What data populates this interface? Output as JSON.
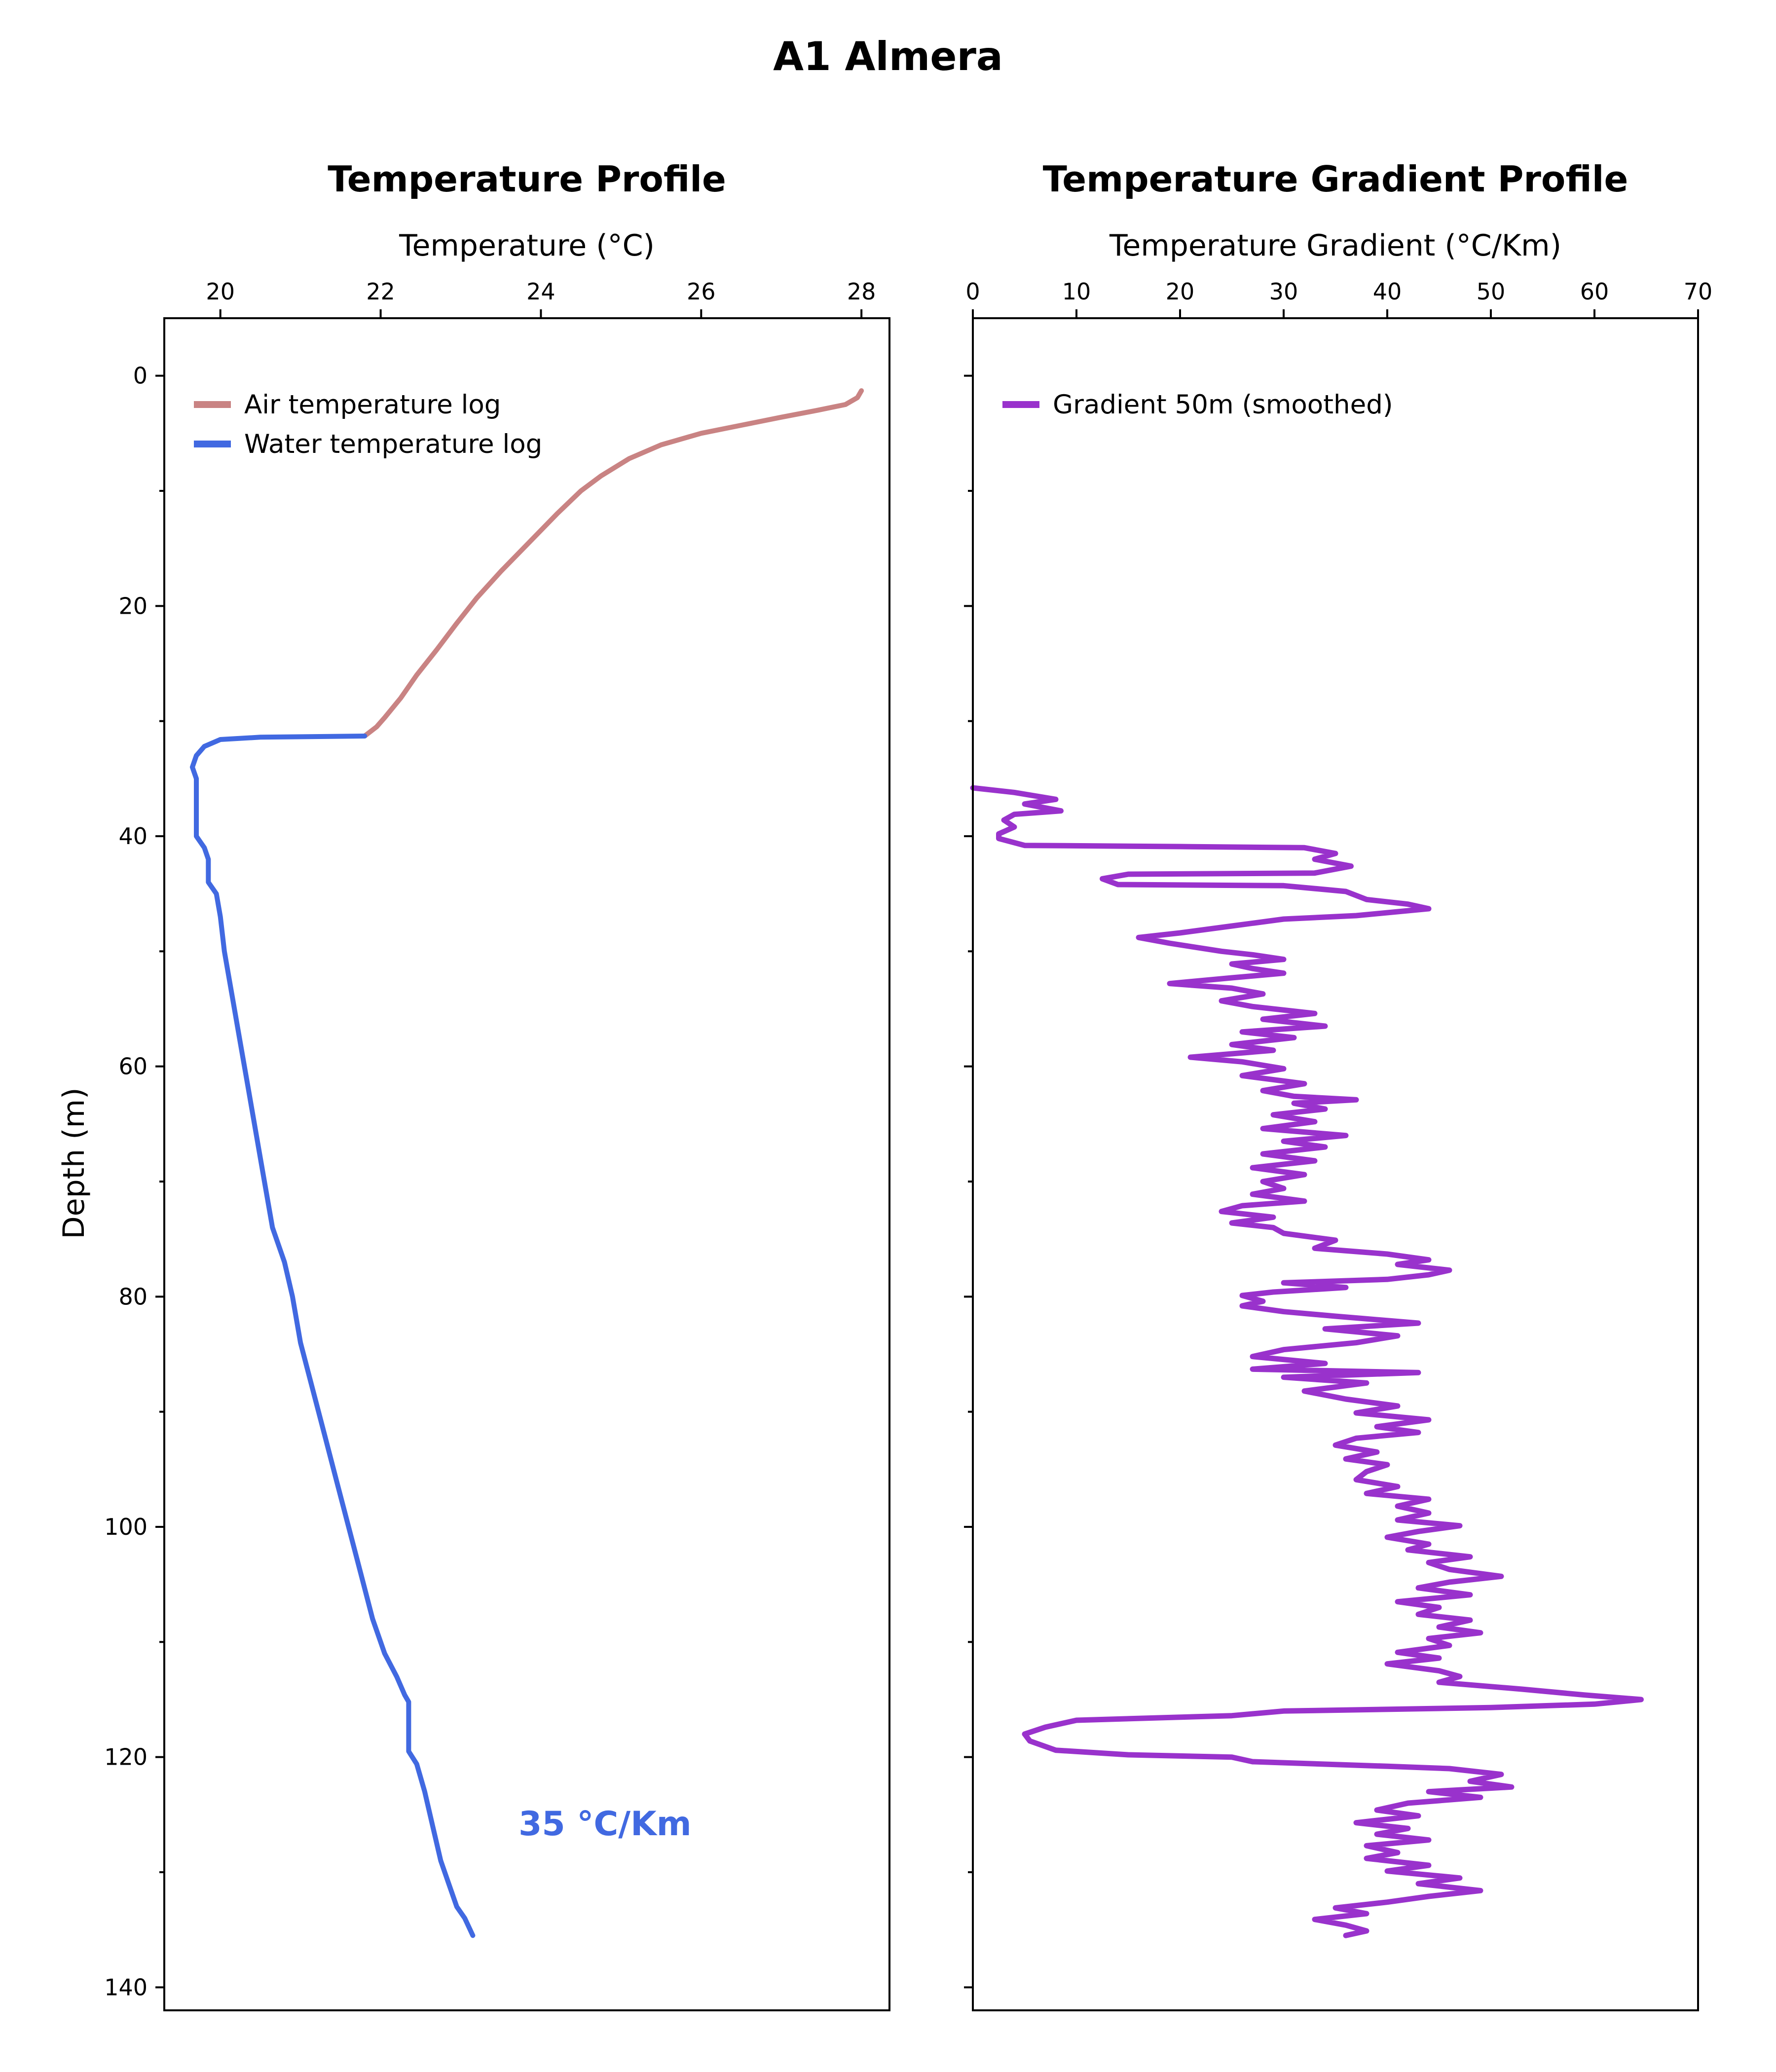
{
  "figure": {
    "suptitle": "A1 Almera"
  },
  "chart_data": [
    {
      "type": "line",
      "title": "Temperature Profile",
      "xlabel": "Temperature (°C)",
      "ylabel": "Depth (m)",
      "x_axis_position": "top",
      "y_inverted": true,
      "xlim": [
        19.3,
        28.35
      ],
      "ylim": [
        142,
        -5
      ],
      "xticks": [
        20,
        22,
        24,
        26,
        28
      ],
      "yticks": [
        0,
        20,
        40,
        60,
        80,
        100,
        120,
        140
      ],
      "yticks_minor": [
        10,
        30,
        50,
        70,
        90,
        110,
        130
      ],
      "grid": false,
      "legend_position": "top-left",
      "annotation": {
        "text": "35 °C/Km",
        "x": 24.8,
        "y": 126,
        "color": "#4169e1"
      },
      "series": [
        {
          "name": "Air temperature log",
          "color": "#c98383",
          "points": [
            [
              28.0,
              1.3
            ],
            [
              27.95,
              1.9
            ],
            [
              27.8,
              2.5
            ],
            [
              27.45,
              3.0
            ],
            [
              27.0,
              3.6
            ],
            [
              26.5,
              4.3
            ],
            [
              26.0,
              5.0
            ],
            [
              25.5,
              6.0
            ],
            [
              25.1,
              7.2
            ],
            [
              24.75,
              8.7
            ],
            [
              24.5,
              10.0
            ],
            [
              24.2,
              12.0
            ],
            [
              23.85,
              14.5
            ],
            [
              23.5,
              17.0
            ],
            [
              23.2,
              19.3
            ],
            [
              22.95,
              21.5
            ],
            [
              22.7,
              23.8
            ],
            [
              22.45,
              26.0
            ],
            [
              22.25,
              28.0
            ],
            [
              22.05,
              29.7
            ],
            [
              21.95,
              30.5
            ],
            [
              21.8,
              31.3
            ]
          ]
        },
        {
          "name": "Water temperature log",
          "color": "#4169e1",
          "points": [
            [
              21.8,
              31.3
            ],
            [
              20.5,
              31.4
            ],
            [
              20.0,
              31.6
            ],
            [
              19.8,
              32.2
            ],
            [
              19.7,
              33.0
            ],
            [
              19.65,
              34.0
            ],
            [
              19.7,
              35.0
            ],
            [
              19.7,
              38.0
            ],
            [
              19.7,
              40.0
            ],
            [
              19.8,
              41.0
            ],
            [
              19.85,
              42.0
            ],
            [
              19.85,
              44.0
            ],
            [
              19.95,
              45.0
            ],
            [
              20.0,
              47.0
            ],
            [
              20.05,
              50.0
            ],
            [
              20.15,
              54.0
            ],
            [
              20.25,
              58.0
            ],
            [
              20.35,
              62.0
            ],
            [
              20.45,
              66.0
            ],
            [
              20.55,
              70.0
            ],
            [
              20.65,
              74.0
            ],
            [
              20.8,
              77.0
            ],
            [
              20.9,
              80.0
            ],
            [
              21.0,
              84.0
            ],
            [
              21.15,
              88.0
            ],
            [
              21.3,
              92.0
            ],
            [
              21.45,
              96.0
            ],
            [
              21.6,
              100.0
            ],
            [
              21.75,
              104.0
            ],
            [
              21.9,
              108.0
            ],
            [
              22.05,
              111.0
            ],
            [
              22.2,
              113.0
            ],
            [
              22.3,
              114.6
            ],
            [
              22.35,
              115.2
            ],
            [
              22.35,
              117.0
            ],
            [
              22.35,
              119.5
            ],
            [
              22.45,
              120.6
            ],
            [
              22.55,
              123.0
            ],
            [
              22.65,
              126.0
            ],
            [
              22.75,
              129.0
            ],
            [
              22.85,
              131.0
            ],
            [
              22.95,
              133.0
            ],
            [
              23.05,
              134.0
            ],
            [
              23.15,
              135.5
            ]
          ]
        }
      ]
    },
    {
      "type": "line",
      "title": "Temperature Gradient Profile",
      "xlabel": "Temperature Gradient (°C/Km)",
      "ylabel": "",
      "x_axis_position": "top",
      "y_inverted": true,
      "xlim": [
        0,
        70
      ],
      "ylim": [
        142,
        -5
      ],
      "xticks": [
        0,
        10,
        20,
        30,
        40,
        50,
        60,
        70
      ],
      "yticks": [
        0,
        20,
        40,
        60,
        80,
        100,
        120,
        140
      ],
      "yticks_minor": [
        10,
        30,
        50,
        70,
        90,
        110,
        130
      ],
      "grid": false,
      "legend_position": "top-left",
      "series": [
        {
          "name": "Gradient 50m (smoothed)",
          "color": "#9932cc",
          "points": [
            [
              0,
              35.8
            ],
            [
              4,
              36.2
            ],
            [
              8,
              36.8
            ],
            [
              5,
              37.2
            ],
            [
              8.5,
              37.8
            ],
            [
              4,
              38.1
            ],
            [
              3,
              38.6
            ],
            [
              4,
              39.2
            ],
            [
              2.5,
              39.8
            ],
            [
              2.5,
              40.2
            ],
            [
              5,
              40.8
            ],
            [
              20,
              40.9
            ],
            [
              32,
              41.0
            ],
            [
              35,
              41.5
            ],
            [
              33,
              42.0
            ],
            [
              36.5,
              42.6
            ],
            [
              33,
              43.2
            ],
            [
              15,
              43.3
            ],
            [
              12.5,
              43.7
            ],
            [
              14,
              44.2
            ],
            [
              30,
              44.3
            ],
            [
              36,
              44.8
            ],
            [
              38,
              45.5
            ],
            [
              42,
              45.9
            ],
            [
              44,
              46.3
            ],
            [
              37,
              46.9
            ],
            [
              30,
              47.2
            ],
            [
              25,
              47.8
            ],
            [
              20,
              48.4
            ],
            [
              16,
              48.8
            ],
            [
              19,
              49.3
            ],
            [
              24,
              50.0
            ],
            [
              27,
              50.3
            ],
            [
              30,
              50.7
            ],
            [
              25,
              51.1
            ],
            [
              27,
              51.5
            ],
            [
              30,
              51.9
            ],
            [
              25,
              52.3
            ],
            [
              19,
              52.8
            ],
            [
              25,
              53.2
            ],
            [
              28,
              53.7
            ],
            [
              24,
              54.3
            ],
            [
              27,
              54.8
            ],
            [
              33,
              55.4
            ],
            [
              28,
              55.9
            ],
            [
              34,
              56.5
            ],
            [
              26,
              57.0
            ],
            [
              31,
              57.5
            ],
            [
              25,
              58.1
            ],
            [
              29,
              58.6
            ],
            [
              21,
              59.2
            ],
            [
              26,
              59.6
            ],
            [
              30,
              60.2
            ],
            [
              26,
              60.8
            ],
            [
              32,
              61.5
            ],
            [
              28,
              62.1
            ],
            [
              31,
              62.6
            ],
            [
              37,
              62.9
            ],
            [
              31,
              63.2
            ],
            [
              34,
              63.7
            ],
            [
              29,
              64.2
            ],
            [
              33,
              64.8
            ],
            [
              28,
              65.4
            ],
            [
              36,
              66.0
            ],
            [
              30,
              66.5
            ],
            [
              34,
              67.0
            ],
            [
              28,
              67.6
            ],
            [
              33,
              68.2
            ],
            [
              27,
              68.8
            ],
            [
              32,
              69.4
            ],
            [
              28,
              70.0
            ],
            [
              30,
              70.6
            ],
            [
              27,
              71.1
            ],
            [
              32,
              71.7
            ],
            [
              26,
              72.1
            ],
            [
              24,
              72.6
            ],
            [
              29,
              73.1
            ],
            [
              25,
              73.6
            ],
            [
              29,
              74.0
            ],
            [
              30,
              74.5
            ],
            [
              35,
              75.1
            ],
            [
              33,
              75.8
            ],
            [
              40,
              76.3
            ],
            [
              44,
              76.8
            ],
            [
              41,
              77.2
            ],
            [
              46,
              77.7
            ],
            [
              44,
              78.1
            ],
            [
              40,
              78.5
            ],
            [
              30,
              78.8
            ],
            [
              36,
              79.2
            ],
            [
              29,
              79.6
            ],
            [
              26,
              79.9
            ],
            [
              28,
              80.4
            ],
            [
              26,
              80.8
            ],
            [
              30,
              81.3
            ],
            [
              35,
              81.7
            ],
            [
              43,
              82.3
            ],
            [
              34,
              82.8
            ],
            [
              41,
              83.4
            ],
            [
              37,
              84.0
            ],
            [
              30,
              84.6
            ],
            [
              27,
              85.2
            ],
            [
              34,
              85.8
            ],
            [
              27,
              86.3
            ],
            [
              43,
              86.6
            ],
            [
              30,
              87.0
            ],
            [
              38,
              87.5
            ],
            [
              32,
              88.2
            ],
            [
              36,
              88.9
            ],
            [
              41,
              89.5
            ],
            [
              37,
              90.1
            ],
            [
              44,
              90.7
            ],
            [
              39,
              91.3
            ],
            [
              43,
              91.8
            ],
            [
              37,
              92.3
            ],
            [
              35,
              92.9
            ],
            [
              39,
              93.5
            ],
            [
              36,
              94.1
            ],
            [
              40,
              94.6
            ],
            [
              38,
              95.2
            ],
            [
              37,
              95.9
            ],
            [
              41,
              96.5
            ],
            [
              38,
              97.1
            ],
            [
              44,
              97.6
            ],
            [
              41,
              98.2
            ],
            [
              44,
              98.8
            ],
            [
              41,
              99.4
            ],
            [
              47,
              99.9
            ],
            [
              43,
              100.4
            ],
            [
              40,
              100.9
            ],
            [
              44,
              101.5
            ],
            [
              42,
              102.0
            ],
            [
              48,
              102.6
            ],
            [
              44,
              103.1
            ],
            [
              46,
              103.7
            ],
            [
              51,
              104.3
            ],
            [
              46,
              104.8
            ],
            [
              43,
              105.3
            ],
            [
              48,
              105.9
            ],
            [
              41,
              106.5
            ],
            [
              45,
              107.0
            ],
            [
              43,
              107.6
            ],
            [
              48,
              108.1
            ],
            [
              45,
              108.7
            ],
            [
              49,
              109.2
            ],
            [
              44,
              109.7
            ],
            [
              46,
              110.3
            ],
            [
              41,
              110.9
            ],
            [
              45,
              111.4
            ],
            [
              40,
              111.9
            ],
            [
              45,
              112.5
            ],
            [
              47,
              113.0
            ],
            [
              45,
              113.5
            ],
            [
              53,
              114.1
            ],
            [
              59,
              114.6
            ],
            [
              64.5,
              115.0
            ],
            [
              60,
              115.4
            ],
            [
              50,
              115.7
            ],
            [
              30,
              116.0
            ],
            [
              25,
              116.4
            ],
            [
              10,
              116.8
            ],
            [
              7,
              117.4
            ],
            [
              5,
              118.0
            ],
            [
              5.5,
              118.6
            ],
            [
              8,
              119.4
            ],
            [
              15,
              119.8
            ],
            [
              25,
              120.0
            ],
            [
              27,
              120.4
            ],
            [
              40,
              120.8
            ],
            [
              46,
              121.0
            ],
            [
              51,
              121.5
            ],
            [
              48,
              122.1
            ],
            [
              52,
              122.6
            ],
            [
              44,
              123.0
            ],
            [
              49,
              123.5
            ],
            [
              42,
              124.0
            ],
            [
              39,
              124.6
            ],
            [
              43,
              125.1
            ],
            [
              37,
              125.7
            ],
            [
              42,
              126.2
            ],
            [
              39,
              126.7
            ],
            [
              44,
              127.2
            ],
            [
              38,
              127.7
            ],
            [
              41,
              128.3
            ],
            [
              38,
              128.8
            ],
            [
              44,
              129.4
            ],
            [
              40,
              129.9
            ],
            [
              47,
              130.5
            ],
            [
              43,
              131.0
            ],
            [
              49,
              131.6
            ],
            [
              44,
              132.1
            ],
            [
              40,
              132.6
            ],
            [
              35,
              133.1
            ],
            [
              38,
              133.6
            ],
            [
              33,
              134.1
            ],
            [
              36,
              134.6
            ],
            [
              38,
              135.1
            ],
            [
              36,
              135.5
            ]
          ]
        }
      ]
    }
  ]
}
